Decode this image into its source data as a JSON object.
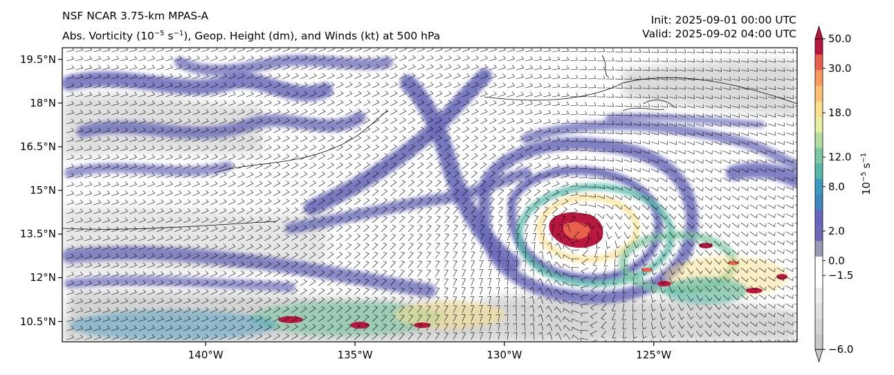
{
  "header": {
    "model": "NSF NCAR 3.75-km MPAS-A",
    "field_prefix": "Abs. Vorticity (10",
    "field_exp1": "−5",
    "field_mid": " s",
    "field_exp2": "−1",
    "field_suffix": "), Geop. Height (dm), and Winds (kt) at 500 hPa",
    "init": "Init: 2025-09-01 00:00 UTC",
    "valid": "Valid: 2025-09-02 04:00 UTC"
  },
  "map": {
    "lon_range": [
      -144.8,
      -120.2
    ],
    "lat_range": [
      9.8,
      19.9
    ],
    "lat_ticks": [
      {
        "value": 10.5,
        "label": "10.5°N"
      },
      {
        "value": 12,
        "label": "12°N"
      },
      {
        "value": 13.5,
        "label": "13.5°N"
      },
      {
        "value": 15,
        "label": "15°N"
      },
      {
        "value": 16.5,
        "label": "16.5°N"
      },
      {
        "value": 18,
        "label": "18°N"
      },
      {
        "value": 19.5,
        "label": "19.5°N"
      }
    ],
    "lon_ticks": [
      {
        "value": -140,
        "label": "140°W"
      },
      {
        "value": -135,
        "label": "135°W"
      },
      {
        "value": -130,
        "label": "130°W"
      },
      {
        "value": -125,
        "label": "125°W"
      }
    ],
    "cyclone_center": {
      "lon": -127.6,
      "lat": 13.8
    },
    "wind_barbs": "yes"
  },
  "colorbar": {
    "unit_base": "10",
    "unit_exp1": "−5",
    "unit_mid": " s",
    "unit_exp2": "−1",
    "tick_labels": [
      {
        "value": -6,
        "label": "−6.0"
      },
      {
        "value": -1.5,
        "label": "−1.5"
      },
      {
        "value": 0,
        "label": "0.0"
      },
      {
        "value": 2,
        "label": "2.0"
      },
      {
        "value": 8,
        "label": "8.0"
      },
      {
        "value": 12,
        "label": "12.0"
      },
      {
        "value": 18,
        "label": "18.0"
      },
      {
        "value": 30,
        "label": "30.0"
      },
      {
        "value": 50,
        "label": "50.0"
      }
    ],
    "colors": [
      "#c8c8c8",
      "#d4d4d4",
      "#e0e0e0",
      "#ececec",
      "#ffffff",
      "#ffffff",
      "#9a9ab4",
      "#6a6ab8",
      "#6666c0",
      "#3d86bf",
      "#3d9ac2",
      "#55b8a8",
      "#7cc8a4",
      "#b4dca0",
      "#e8f0a0",
      "#f8e08c",
      "#fcc070",
      "#f89a5c",
      "#e8604c",
      "#b81840"
    ],
    "extend": "both"
  }
}
